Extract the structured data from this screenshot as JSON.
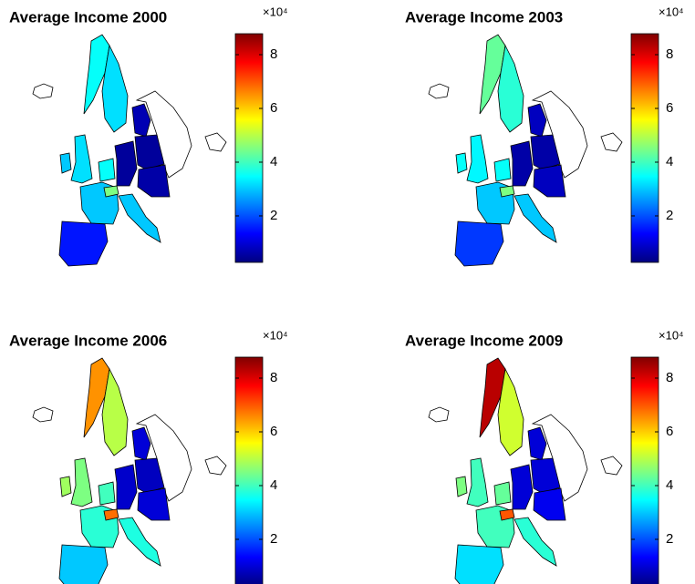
{
  "maps": [
    {
      "title": "Average Income 2000",
      "values": [
        3.5,
        3.2,
        0.7,
        3.2,
        3.0,
        3.0,
        3.5,
        0.5,
        4.5,
        3.0,
        1.5,
        0.5,
        0.6
      ]
    },
    {
      "title": "Average Income 2003",
      "values": [
        4.3,
        3.8,
        0.8,
        3.4,
        3.5,
        3.0,
        3.5,
        0.6,
        4.5,
        3.0,
        1.8,
        0.6,
        0.8
      ]
    },
    {
      "title": "Average Income 2006",
      "values": [
        6.5,
        5.0,
        1.0,
        4.5,
        4.8,
        3.8,
        4.0,
        0.9,
        6.8,
        3.7,
        3.0,
        0.8,
        1.0
      ]
    },
    {
      "title": "Average Income 2009",
      "values": [
        8.3,
        5.2,
        1.0,
        4.0,
        4.5,
        4.0,
        4.3,
        1.0,
        7.0,
        3.8,
        3.2,
        1.0,
        1.2
      ]
    }
  ],
  "colorbar": {
    "clim": [
      0.27,
      8.78
    ],
    "ticks": [
      2,
      4,
      6,
      8
    ],
    "label": "×10⁴"
  }
}
